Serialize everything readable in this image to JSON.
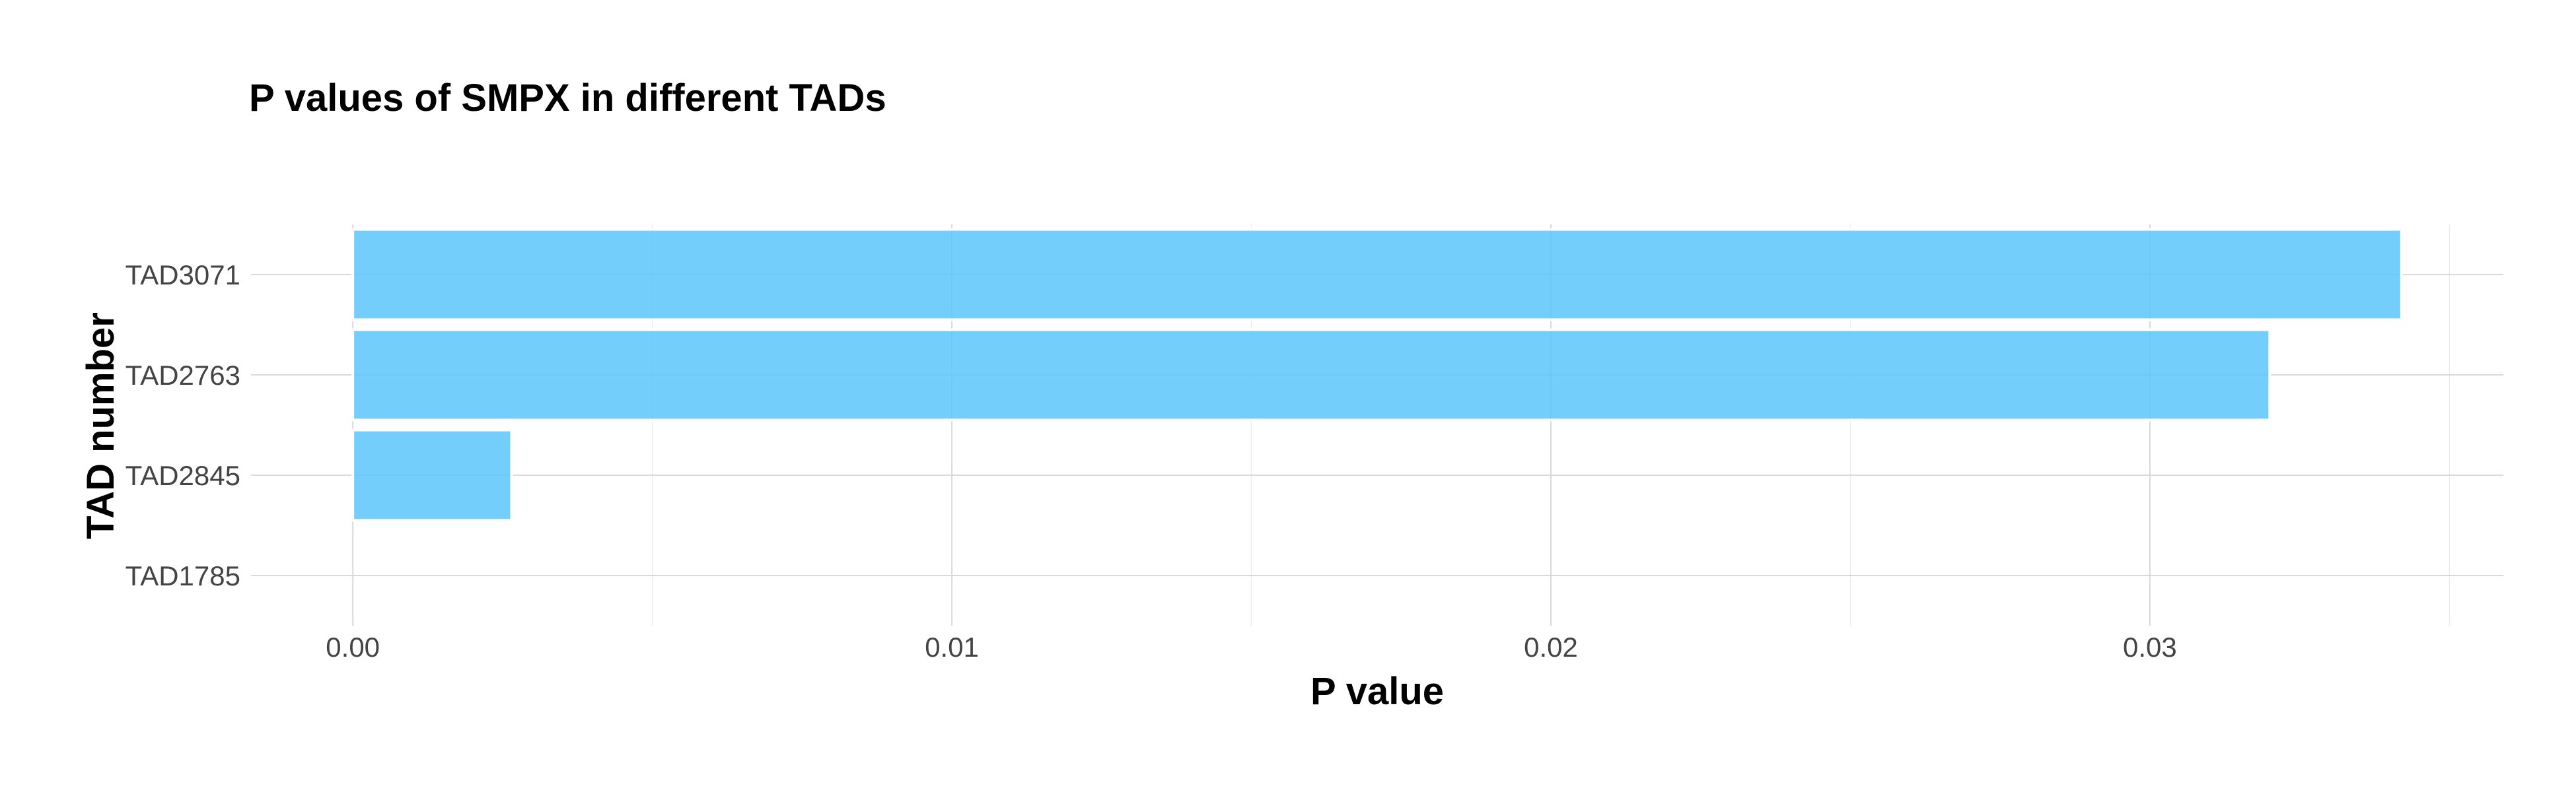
{
  "chart_data": {
    "type": "bar",
    "orientation": "horizontal",
    "title": "P values of SMPX in different TADs",
    "xlabel": "P value",
    "ylabel": "TAD number",
    "categories": [
      "TAD3071",
      "TAD2763",
      "TAD2845",
      "TAD1785"
    ],
    "values": [
      0.0342,
      0.032,
      0.00265,
      0.0
    ],
    "xlim": [
      -0.0017,
      0.0359
    ],
    "x_ticks": [
      0.0,
      0.01,
      0.02,
      0.03
    ],
    "x_tick_labels": [
      "0.00",
      "0.01",
      "0.02",
      "0.03"
    ],
    "grid": true,
    "bar_color": "#5bc5fa"
  }
}
